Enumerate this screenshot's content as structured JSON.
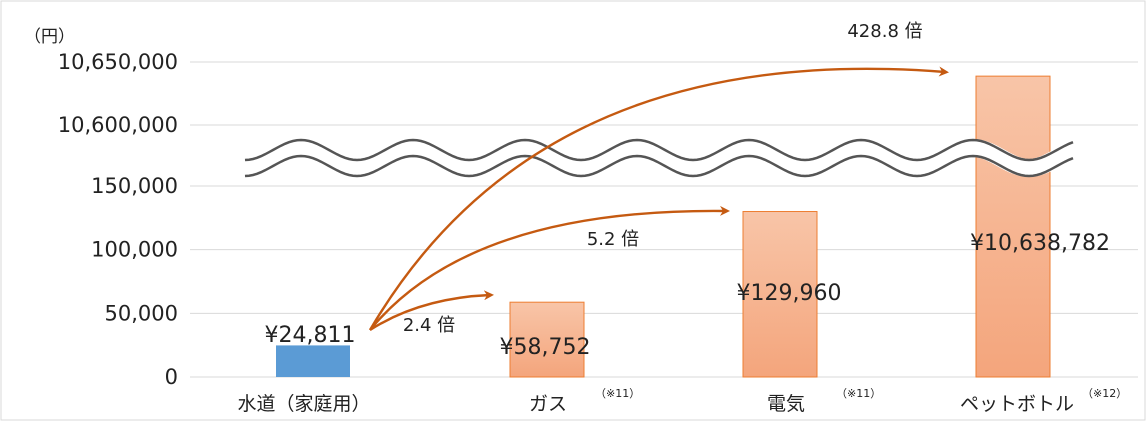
{
  "chart_data": {
    "type": "bar",
    "y_unit": "（円）",
    "categories": [
      "水道（家庭用）",
      "ガス",
      "電気",
      "ペットボトル"
    ],
    "category_notes": [
      "",
      "（※11）",
      "（※11）",
      "（※12）"
    ],
    "values": [
      24811,
      58752,
      129960,
      10638782
    ],
    "data_labels": [
      "¥24,811",
      "¥58,752",
      "¥129,960",
      "¥10,638,782"
    ],
    "y_ticks_lower": [
      0,
      50000,
      100000,
      150000
    ],
    "y_ticks_upper": [
      10600000,
      10650000
    ],
    "y_tick_labels": [
      "0",
      "50,000",
      "100,000",
      "150,000",
      "10,600,000",
      "10,650,000"
    ],
    "axis_break": true,
    "ratio_annotations": [
      {
        "target": "ガス",
        "label": "2.4 倍"
      },
      {
        "target": "電気",
        "label": "5.2 倍"
      },
      {
        "target": "ペットボトル",
        "label": "428.8 倍"
      }
    ],
    "colors": {
      "water": "#5b9bd5",
      "other_top": "#f8c5a8",
      "other_bottom": "#f4a57c",
      "other_border": "#ed7d31",
      "arrow": "#c55a11"
    },
    "grid": true
  }
}
